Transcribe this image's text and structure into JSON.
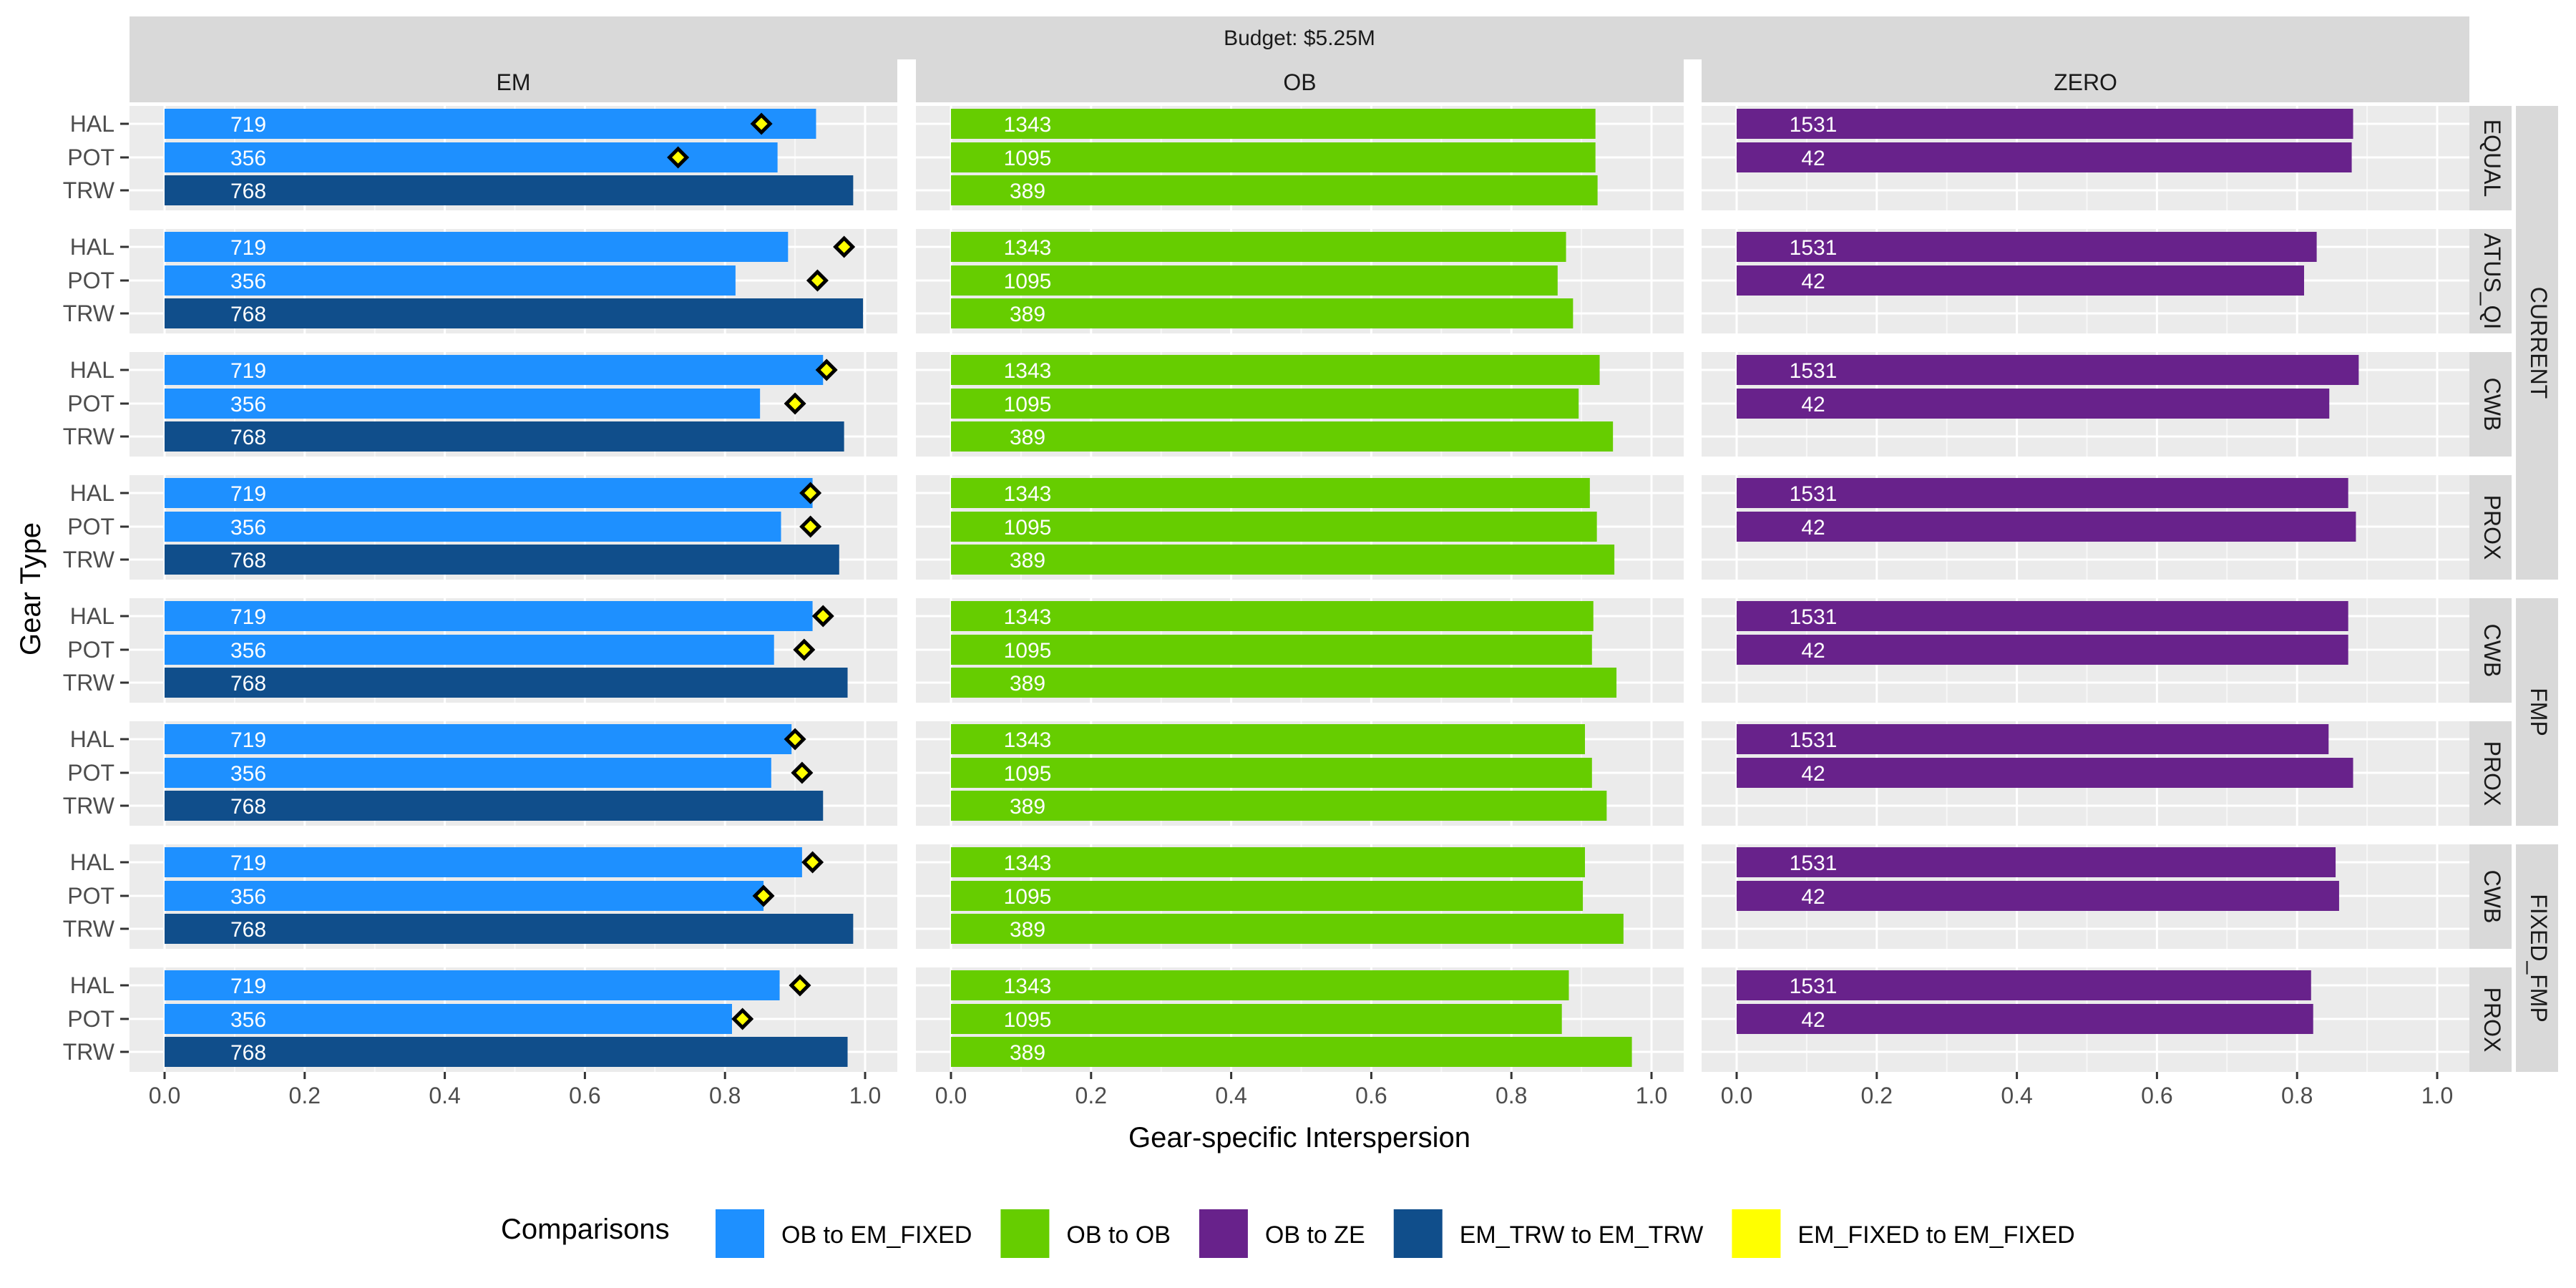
{
  "chart_data": {
    "type": "bar",
    "orientation": "horizontal",
    "title": "Budget: $5.25M",
    "xlabel": "Gear-specific Interspersion",
    "ylabel": "Gear Type",
    "xlim": [
      0,
      1.05
    ],
    "x_ticks": [
      "0.0",
      "0.2",
      "0.4",
      "0.6",
      "0.8",
      "1.0"
    ],
    "grid": true,
    "legend_position": "bottom",
    "legend": {
      "title": "Comparisons",
      "entries": [
        {
          "label": "OB to EM_FIXED",
          "color": "#1e90ff"
        },
        {
          "label": "OB to OB",
          "color": "#66cd00"
        },
        {
          "label": "OB to ZE",
          "color": "#68228b"
        },
        {
          "label": "EM_TRW to EM_TRW",
          "color": "#104e8b"
        },
        {
          "label": "EM_FIXED to EM_FIXED",
          "color": "#ffff00"
        }
      ]
    },
    "columns": [
      "EM",
      "OB",
      "ZERO"
    ],
    "row_groups": [
      {
        "label": "CURRENT",
        "strips": [
          "EQUAL",
          "ATUS_QI",
          "CWB",
          "PROX"
        ]
      },
      {
        "label": "FMP",
        "strips": [
          "CWB",
          "PROX"
        ]
      },
      {
        "label": "FIXED_FMP",
        "strips": [
          "CWB",
          "PROX"
        ]
      }
    ],
    "strata": [
      "HAL",
      "POT",
      "TRW"
    ],
    "bar_labels": {
      "EM": [
        "719",
        "356",
        "768"
      ],
      "OB": [
        "1343",
        "1095",
        "389"
      ],
      "ZERO": [
        "1531",
        "42"
      ]
    },
    "panels": [
      {
        "row": "EQUAL",
        "EM": [
          0.93,
          0.875,
          0.983
        ],
        "EM_FIXED_points": [
          0.852,
          0.733
        ],
        "OB": [
          0.92,
          0.92,
          0.923
        ],
        "ZERO": [
          0.88,
          0.878
        ]
      },
      {
        "row": "ATUS_QI",
        "EM": [
          0.89,
          0.815,
          0.997
        ],
        "EM_FIXED_points": [
          0.97,
          0.932
        ],
        "OB": [
          0.878,
          0.866,
          0.888
        ],
        "ZERO": [
          0.828,
          0.81
        ]
      },
      {
        "row": "CWB",
        "EM": [
          0.94,
          0.85,
          0.97
        ],
        "EM_FIXED_points": [
          0.945,
          0.9
        ],
        "OB": [
          0.926,
          0.896,
          0.945
        ],
        "ZERO": [
          0.888,
          0.846
        ]
      },
      {
        "row": "PROX",
        "EM": [
          0.925,
          0.88,
          0.963
        ],
        "EM_FIXED_points": [
          0.922,
          0.922
        ],
        "OB": [
          0.912,
          0.922,
          0.947
        ],
        "ZERO": [
          0.873,
          0.884
        ]
      },
      {
        "row": "CWB",
        "EM": [
          0.925,
          0.87,
          0.975
        ],
        "EM_FIXED_points": [
          0.94,
          0.913
        ],
        "OB": [
          0.917,
          0.915,
          0.95
        ],
        "ZERO": [
          0.873,
          0.873
        ]
      },
      {
        "row": "PROX",
        "EM": [
          0.895,
          0.866,
          0.94
        ],
        "EM_FIXED_points": [
          0.9,
          0.91
        ],
        "OB": [
          0.905,
          0.915,
          0.936
        ],
        "ZERO": [
          0.845,
          0.88
        ]
      },
      {
        "row": "CWB",
        "EM": [
          0.91,
          0.855,
          0.983
        ],
        "EM_FIXED_points": [
          0.925,
          0.855
        ],
        "OB": [
          0.905,
          0.902,
          0.96
        ],
        "ZERO": [
          0.855,
          0.86
        ]
      },
      {
        "row": "PROX",
        "EM": [
          0.878,
          0.81,
          0.975
        ],
        "EM_FIXED_points": [
          0.907,
          0.825
        ],
        "OB": [
          0.882,
          0.872,
          0.972
        ],
        "ZERO": [
          0.82,
          0.823
        ]
      }
    ]
  }
}
